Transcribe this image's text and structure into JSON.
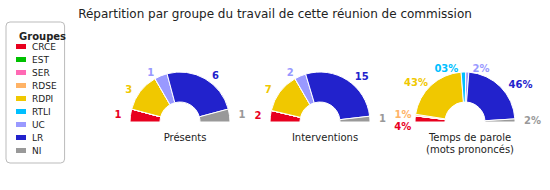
{
  "title": "Répartition par groupe du travail de cette réunion de commission",
  "legend_title": "Groupes",
  "legend": "left",
  "chart_data": [
    {
      "type": "pie",
      "title": "Présents",
      "categories": [
        "CRCE",
        "EST",
        "SER",
        "RDSE",
        "RDPI",
        "RTLI",
        "UC",
        "LR",
        "NI"
      ],
      "values": [
        1,
        0,
        0,
        0,
        3,
        0,
        1,
        6,
        1
      ],
      "colors": [
        "#e8001e",
        "#00c000",
        "#ff69b4",
        "#ffb366",
        "#f0c800",
        "#00bfff",
        "#9999ff",
        "#2222cc",
        "#999999"
      ],
      "data_labels": true
    },
    {
      "type": "pie",
      "title": "Interventions",
      "categories": [
        "CRCE",
        "EST",
        "SER",
        "RDSE",
        "RDPI",
        "RTLI",
        "UC",
        "LR",
        "NI"
      ],
      "values": [
        2,
        0,
        0,
        0,
        7,
        0,
        2,
        15,
        1
      ],
      "colors": [
        "#e8001e",
        "#00c000",
        "#ff69b4",
        "#ffb366",
        "#f0c800",
        "#00bfff",
        "#9999ff",
        "#2222cc",
        "#999999"
      ],
      "data_labels": true
    },
    {
      "type": "pie",
      "title": "Temps de parole\n(mots prononcés)",
      "categories": [
        "CRCE",
        "EST",
        "SER",
        "RDSE",
        "RDPI",
        "RTLI",
        "UC",
        "LR",
        "NI"
      ],
      "values": [
        4,
        0,
        0,
        1,
        43,
        3,
        2,
        46,
        2
      ],
      "value_labels": [
        "4%",
        null,
        null,
        "1%",
        "43%",
        "03%",
        "2%",
        "46%",
        "2%"
      ],
      "colors": [
        "#e8001e",
        "#00c000",
        "#ff69b4",
        "#ffb366",
        "#f0c800",
        "#00bfff",
        "#9999ff",
        "#2222cc",
        "#999999"
      ],
      "data_labels": true
    }
  ]
}
